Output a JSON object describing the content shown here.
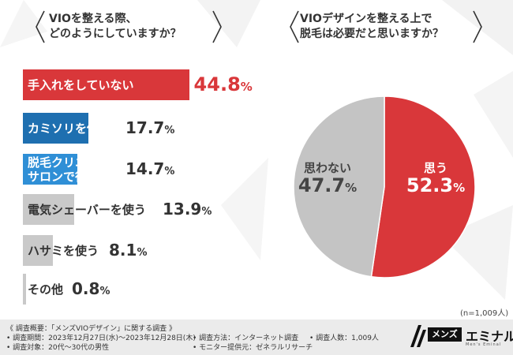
{
  "left_question": {
    "line1": "VIOを整える際、",
    "line2": "どのようにしていますか？"
  },
  "right_question": {
    "line1": "VIOデザインを整える上で",
    "line2": "脱毛は必要だと思いますか？"
  },
  "colors": {
    "red": "#d9373a",
    "blue_dark": "#1e6fb0",
    "blue_light": "#2f8fd6",
    "gray": "#c9c9c9",
    "pie_gray": "#c4c4c4"
  },
  "chart_data": [
    {
      "type": "bar",
      "orientation": "horizontal",
      "categories": [
        "手入れをしていない",
        "カミソリを使う",
        "脱毛クリニック・サロンで行う",
        "電気シェーバーを使う",
        "ハサミを使う",
        "その他"
      ],
      "category_lines": [
        [
          "手入れをしていない"
        ],
        [
          "カミソリを使う"
        ],
        [
          "脱毛クリニック・",
          "サロンで行う"
        ],
        [
          "電気シェーバーを使う"
        ],
        [
          "ハサミを使う"
        ],
        [
          "その他"
        ]
      ],
      "values": [
        44.8,
        17.7,
        14.7,
        13.9,
        8.1,
        0.8
      ],
      "value_labels": [
        "44.8",
        "17.7",
        "14.7",
        "13.9",
        "8.1",
        "0.8"
      ],
      "unit": "%",
      "xlim": [
        0,
        50
      ]
    },
    {
      "type": "pie",
      "categories": [
        "思う",
        "思わない"
      ],
      "values": [
        52.3,
        47.7
      ],
      "value_labels": [
        "52.3",
        "47.7"
      ],
      "unit": "%",
      "n_note": "(n=1,009人)"
    }
  ],
  "footer": {
    "title": "《 調査概要：「メンズVIOデザイン」に関する調査 》",
    "period": "• 調査期間：2023年12月27日(水)～2023年12月28日(木)",
    "method": "• 調査方法：インターネット調査",
    "count": "• 調査人数：1,009人",
    "target": "• 調査対象：20代～30代の男性",
    "provider": "• モニター提供元：ゼネラルリサーチ"
  },
  "logo": {
    "tag": "メンズ",
    "name": "エミナル",
    "sub": "Men's Eminal"
  }
}
